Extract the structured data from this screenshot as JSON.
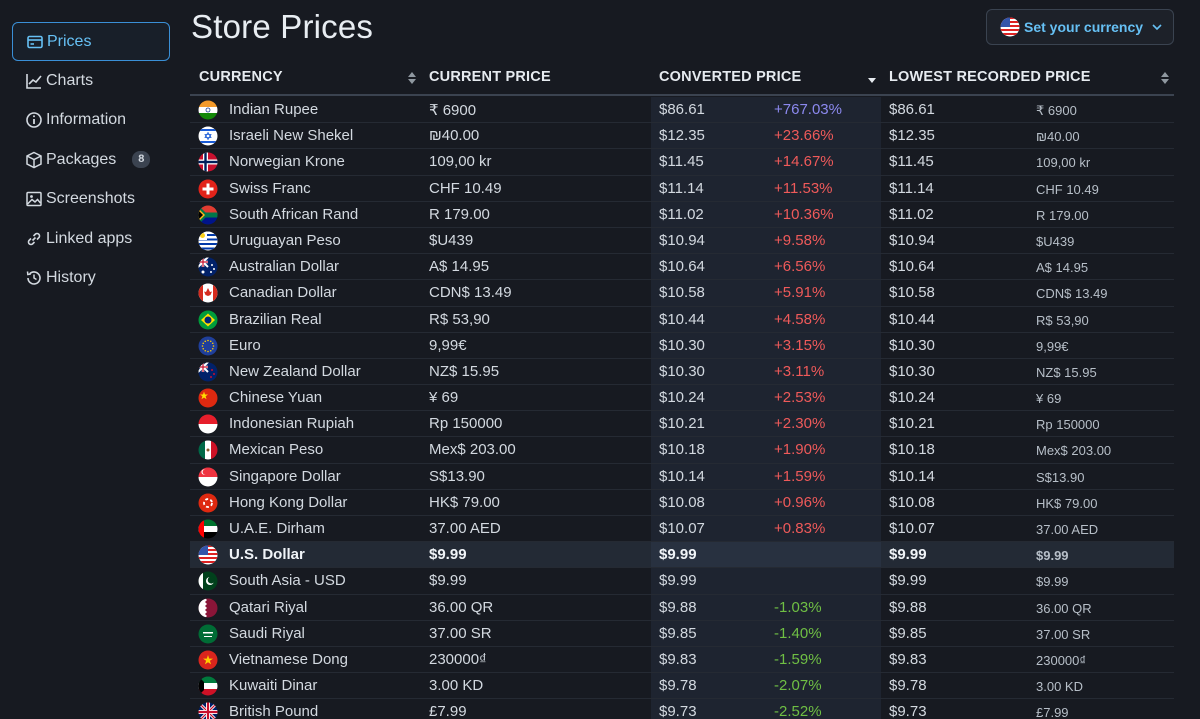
{
  "sidebar": {
    "items": [
      {
        "label": "Prices",
        "icon": "prices-icon",
        "active": true
      },
      {
        "label": "Charts",
        "icon": "charts-icon"
      },
      {
        "label": "Information",
        "icon": "info-icon"
      },
      {
        "label": "Packages",
        "icon": "packages-icon",
        "badge": "8"
      },
      {
        "label": "Screenshots",
        "icon": "screenshots-icon"
      },
      {
        "label": "Linked apps",
        "icon": "link-icon"
      },
      {
        "label": "History",
        "icon": "history-icon"
      }
    ]
  },
  "header": {
    "title": "Store Prices",
    "currency_button": "Set your currency"
  },
  "table": {
    "columns": {
      "currency": "CURRENCY",
      "current": "CURRENT PRICE",
      "converted": "CONVERTED PRICE",
      "lowest": "LOWEST RECORDED PRICE"
    },
    "rows": [
      {
        "flag": "in",
        "name": "Indian Rupee",
        "current": "₹ 6900",
        "converted": "$86.61",
        "diff": "+767.03%",
        "lowest": "$86.61",
        "lowest_local": "₹ 6900"
      },
      {
        "flag": "il",
        "name": "Israeli New Shekel",
        "current": "₪40.00",
        "converted": "$12.35",
        "diff": "+23.66%",
        "lowest": "$12.35",
        "lowest_local": "₪40.00"
      },
      {
        "flag": "no",
        "name": "Norwegian Krone",
        "current": "109,00 kr",
        "converted": "$11.45",
        "diff": "+14.67%",
        "lowest": "$11.45",
        "lowest_local": "109,00 kr"
      },
      {
        "flag": "ch",
        "name": "Swiss Franc",
        "current": "CHF 10.49",
        "converted": "$11.14",
        "diff": "+11.53%",
        "lowest": "$11.14",
        "lowest_local": "CHF 10.49"
      },
      {
        "flag": "za",
        "name": "South African Rand",
        "current": "R 179.00",
        "converted": "$11.02",
        "diff": "+10.36%",
        "lowest": "$11.02",
        "lowest_local": "R 179.00"
      },
      {
        "flag": "uy",
        "name": "Uruguayan Peso",
        "current": "$U439",
        "converted": "$10.94",
        "diff": "+9.58%",
        "lowest": "$10.94",
        "lowest_local": "$U439"
      },
      {
        "flag": "au",
        "name": "Australian Dollar",
        "current": "A$ 14.95",
        "converted": "$10.64",
        "diff": "+6.56%",
        "lowest": "$10.64",
        "lowest_local": "A$ 14.95"
      },
      {
        "flag": "ca",
        "name": "Canadian Dollar",
        "current": "CDN$ 13.49",
        "converted": "$10.58",
        "diff": "+5.91%",
        "lowest": "$10.58",
        "lowest_local": "CDN$ 13.49"
      },
      {
        "flag": "br",
        "name": "Brazilian Real",
        "current": "R$ 53,90",
        "converted": "$10.44",
        "diff": "+4.58%",
        "lowest": "$10.44",
        "lowest_local": "R$ 53,90"
      },
      {
        "flag": "eu",
        "name": "Euro",
        "current": "9,99€",
        "converted": "$10.30",
        "diff": "+3.15%",
        "lowest": "$10.30",
        "lowest_local": "9,99€"
      },
      {
        "flag": "nz",
        "name": "New Zealand Dollar",
        "current": "NZ$ 15.95",
        "converted": "$10.30",
        "diff": "+3.11%",
        "lowest": "$10.30",
        "lowest_local": "NZ$ 15.95"
      },
      {
        "flag": "cn",
        "name": "Chinese Yuan",
        "current": "¥ 69",
        "converted": "$10.24",
        "diff": "+2.53%",
        "lowest": "$10.24",
        "lowest_local": "¥ 69"
      },
      {
        "flag": "id",
        "name": "Indonesian Rupiah",
        "current": "Rp 150000",
        "converted": "$10.21",
        "diff": "+2.30%",
        "lowest": "$10.21",
        "lowest_local": "Rp 150000"
      },
      {
        "flag": "mx",
        "name": "Mexican Peso",
        "current": "Mex$ 203.00",
        "converted": "$10.18",
        "diff": "+1.90%",
        "lowest": "$10.18",
        "lowest_local": "Mex$ 203.00"
      },
      {
        "flag": "sg",
        "name": "Singapore Dollar",
        "current": "S$13.90",
        "converted": "$10.14",
        "diff": "+1.59%",
        "lowest": "$10.14",
        "lowest_local": "S$13.90"
      },
      {
        "flag": "hk",
        "name": "Hong Kong Dollar",
        "current": "HK$ 79.00",
        "converted": "$10.08",
        "diff": "+0.96%",
        "lowest": "$10.08",
        "lowest_local": "HK$ 79.00"
      },
      {
        "flag": "ae",
        "name": "U.A.E. Dirham",
        "current": "37.00 AED",
        "converted": "$10.07",
        "diff": "+0.83%",
        "lowest": "$10.07",
        "lowest_local": "37.00 AED"
      },
      {
        "flag": "us",
        "name": "U.S. Dollar",
        "current": "$9.99",
        "converted": "$9.99",
        "diff": "",
        "lowest": "$9.99",
        "lowest_local": "$9.99",
        "highlight": true
      },
      {
        "flag": "pk",
        "name": "South Asia - USD",
        "current": "$9.99",
        "converted": "$9.99",
        "diff": "",
        "lowest": "$9.99",
        "lowest_local": "$9.99"
      },
      {
        "flag": "qa",
        "name": "Qatari Riyal",
        "current": "36.00 QR",
        "converted": "$9.88",
        "diff": "-1.03%",
        "lowest": "$9.88",
        "lowest_local": "36.00 QR"
      },
      {
        "flag": "sa",
        "name": "Saudi Riyal",
        "current": "37.00 SR",
        "converted": "$9.85",
        "diff": "-1.40%",
        "lowest": "$9.85",
        "lowest_local": "37.00 SR"
      },
      {
        "flag": "vn",
        "name": "Vietnamese Dong",
        "current": "230000₫",
        "converted": "$9.83",
        "diff": "-1.59%",
        "lowest": "$9.83",
        "lowest_local": "230000₫"
      },
      {
        "flag": "kw",
        "name": "Kuwaiti Dinar",
        "current": "3.00 KD",
        "converted": "$9.78",
        "diff": "-2.07%",
        "lowest": "$9.78",
        "lowest_local": "3.00 KD"
      },
      {
        "flag": "gb",
        "name": "British Pound",
        "current": "£7.99",
        "converted": "$9.73",
        "diff": "-2.52%",
        "lowest": "$9.73",
        "lowest_local": "£7.99"
      }
    ]
  },
  "colors": {
    "accent": "#66c0f4",
    "increase": "#ef5a5a",
    "decrease": "#6fbf44",
    "top_increase": "#8c89ef"
  }
}
